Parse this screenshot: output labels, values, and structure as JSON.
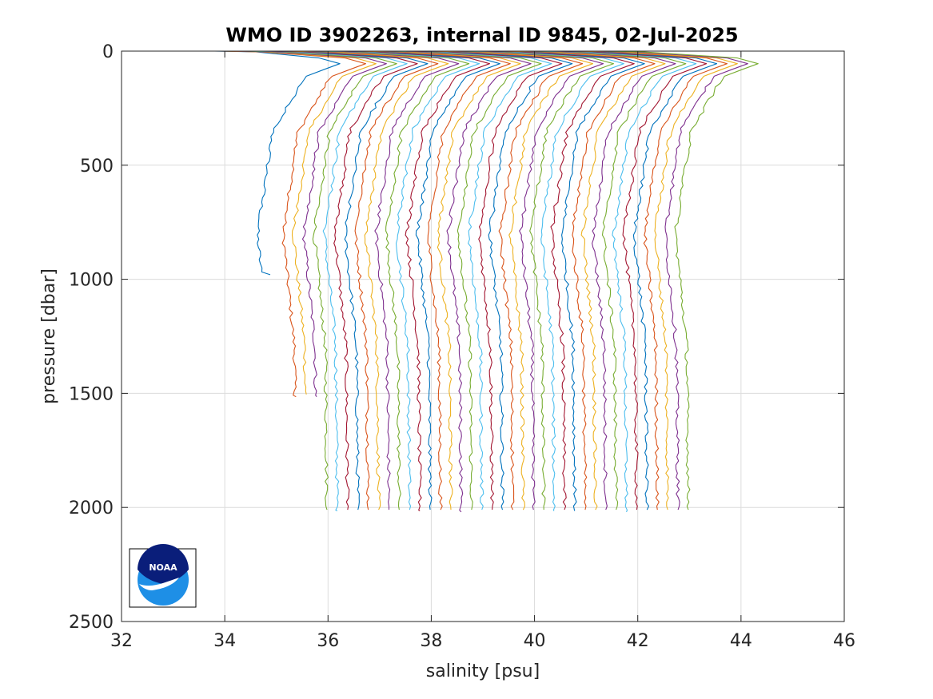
{
  "chart_data": {
    "type": "line",
    "title": "WMO ID 3902263, internal ID 9845, 02-Jul-2025",
    "xlabel": "salinity [psu]",
    "ylabel": "pressure [dbar]",
    "xlim": [
      32,
      46
    ],
    "ylim": [
      0,
      2500
    ],
    "y_reversed": true,
    "grid": true,
    "x_ticks": [
      32,
      34,
      36,
      38,
      40,
      42,
      44,
      46
    ],
    "y_ticks": [
      0,
      500,
      1000,
      1500,
      2000,
      2500
    ],
    "x_tick_labels": [
      "32",
      "34",
      "36",
      "38",
      "40",
      "42",
      "44",
      "46"
    ],
    "y_tick_labels": [
      "0",
      "500",
      "1000",
      "1500",
      "2000",
      "2500"
    ],
    "series_colors": [
      "#0072BD",
      "#D95319",
      "#EDB120",
      "#7E2F8E",
      "#77AC30",
      "#4DBEEE",
      "#A2142F"
    ],
    "series": [
      {
        "bottom_salinity": 34.88,
        "max_pressure": 980,
        "surface_salinity": 33.8
      },
      {
        "bottom_salinity": 35.38,
        "max_pressure": 1515,
        "surface_salinity": 33.9
      },
      {
        "bottom_salinity": 35.58,
        "max_pressure": 1505,
        "surface_salinity": 34.0
      },
      {
        "bottom_salinity": 35.78,
        "max_pressure": 1515,
        "surface_salinity": 34.1
      },
      {
        "bottom_salinity": 35.98,
        "max_pressure": 2010,
        "surface_salinity": 34.3
      },
      {
        "bottom_salinity": 36.18,
        "max_pressure": 2015,
        "surface_salinity": 34.5
      },
      {
        "bottom_salinity": 36.38,
        "max_pressure": 2010,
        "surface_salinity": 34.7
      },
      {
        "bottom_salinity": 36.58,
        "max_pressure": 2010,
        "surface_salinity": 34.9
      },
      {
        "bottom_salinity": 36.78,
        "max_pressure": 2010,
        "surface_salinity": 35.1
      },
      {
        "bottom_salinity": 36.98,
        "max_pressure": 2010,
        "surface_salinity": 35.3
      },
      {
        "bottom_salinity": 37.18,
        "max_pressure": 2010,
        "surface_salinity": 35.5
      },
      {
        "bottom_salinity": 37.38,
        "max_pressure": 2010,
        "surface_salinity": 35.7
      },
      {
        "bottom_salinity": 37.58,
        "max_pressure": 2010,
        "surface_salinity": 35.9
      },
      {
        "bottom_salinity": 37.78,
        "max_pressure": 2015,
        "surface_salinity": 36.1
      },
      {
        "bottom_salinity": 37.98,
        "max_pressure": 2010,
        "surface_salinity": 36.3
      },
      {
        "bottom_salinity": 38.18,
        "max_pressure": 2010,
        "surface_salinity": 36.5
      },
      {
        "bottom_salinity": 38.38,
        "max_pressure": 2010,
        "surface_salinity": 36.7
      },
      {
        "bottom_salinity": 38.58,
        "max_pressure": 2020,
        "surface_salinity": 36.9
      },
      {
        "bottom_salinity": 38.78,
        "max_pressure": 2010,
        "surface_salinity": 37.1
      },
      {
        "bottom_salinity": 38.98,
        "max_pressure": 2010,
        "surface_salinity": 37.3
      },
      {
        "bottom_salinity": 39.18,
        "max_pressure": 2010,
        "surface_salinity": 37.5
      },
      {
        "bottom_salinity": 39.38,
        "max_pressure": 2010,
        "surface_salinity": 37.7
      },
      {
        "bottom_salinity": 39.58,
        "max_pressure": 2010,
        "surface_salinity": 37.9
      },
      {
        "bottom_salinity": 39.78,
        "max_pressure": 2010,
        "surface_salinity": 38.1
      },
      {
        "bottom_salinity": 39.98,
        "max_pressure": 2010,
        "surface_salinity": 38.3
      },
      {
        "bottom_salinity": 40.18,
        "max_pressure": 2010,
        "surface_salinity": 38.5
      },
      {
        "bottom_salinity": 40.38,
        "max_pressure": 2015,
        "surface_salinity": 38.7
      },
      {
        "bottom_salinity": 40.58,
        "max_pressure": 2010,
        "surface_salinity": 38.9
      },
      {
        "bottom_salinity": 40.78,
        "max_pressure": 2015,
        "surface_salinity": 39.1
      },
      {
        "bottom_salinity": 40.98,
        "max_pressure": 2010,
        "surface_salinity": 39.3
      },
      {
        "bottom_salinity": 41.18,
        "max_pressure": 2010,
        "surface_salinity": 39.5
      },
      {
        "bottom_salinity": 41.38,
        "max_pressure": 2010,
        "surface_salinity": 39.7
      },
      {
        "bottom_salinity": 41.58,
        "max_pressure": 2010,
        "surface_salinity": 39.9
      },
      {
        "bottom_salinity": 41.78,
        "max_pressure": 2020,
        "surface_salinity": 40.1
      },
      {
        "bottom_salinity": 41.98,
        "max_pressure": 2010,
        "surface_salinity": 40.3
      },
      {
        "bottom_salinity": 42.18,
        "max_pressure": 2010,
        "surface_salinity": 40.5
      },
      {
        "bottom_salinity": 42.38,
        "max_pressure": 2010,
        "surface_salinity": 40.7
      },
      {
        "bottom_salinity": 42.58,
        "max_pressure": 2010,
        "surface_salinity": 40.9
      },
      {
        "bottom_salinity": 42.78,
        "max_pressure": 2010,
        "surface_salinity": 41.1
      },
      {
        "bottom_salinity": 42.98,
        "max_pressure": 2010,
        "surface_salinity": 41.3
      }
    ]
  },
  "logo": {
    "name": "noaa-logo",
    "text": "NOAA",
    "colors": {
      "navy": "#0a1e7a",
      "blue": "#1e8fe6",
      "white": "#ffffff"
    }
  }
}
